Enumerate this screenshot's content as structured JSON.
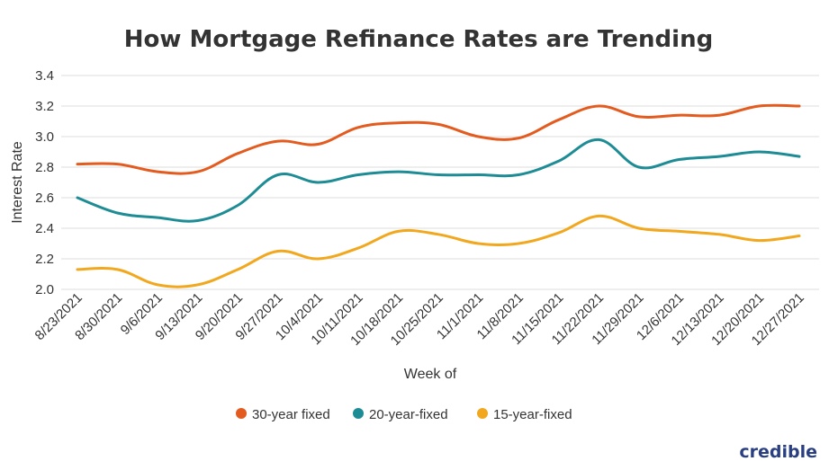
{
  "chart_data": {
    "type": "line",
    "title": "How Mortgage Refinance Rates are Trending",
    "xlabel": "Week of",
    "ylabel": "Interest Rate",
    "ylim": [
      2.0,
      3.4
    ],
    "yticks": [
      "3.4",
      "3.2",
      "3.0",
      "2.8",
      "2.6",
      "2.4",
      "2.2",
      "2.0"
    ],
    "grid": true,
    "legend_position": "bottom",
    "categories": [
      "8/23/2021",
      "8/30/2021",
      "9/6/2021",
      "9/13/2021",
      "9/20/2021",
      "9/27/2021",
      "10/4/2021",
      "10/11/2021",
      "10/18/2021",
      "10/25/2021",
      "11/1/2021",
      "11/8/2021",
      "11/15/2021",
      "11/22/2021",
      "11/29/2021",
      "12/6/2021",
      "12/13/2021",
      "12/20/2021",
      "12/27/2021"
    ],
    "series": [
      {
        "name": "30-year fixed",
        "color": "#e35b1e",
        "values": [
          2.82,
          2.82,
          2.77,
          2.77,
          2.89,
          2.97,
          2.95,
          3.06,
          3.09,
          3.08,
          3.0,
          2.99,
          3.11,
          3.2,
          3.13,
          3.14,
          3.14,
          3.2,
          3.2
        ]
      },
      {
        "name": "20-year-fixed",
        "color": "#1e8c95",
        "values": [
          2.6,
          2.5,
          2.47,
          2.45,
          2.55,
          2.75,
          2.7,
          2.75,
          2.77,
          2.75,
          2.75,
          2.75,
          2.84,
          2.98,
          2.8,
          2.85,
          2.87,
          2.9,
          2.87
        ]
      },
      {
        "name": "15-year-fixed",
        "color": "#f2a81e",
        "values": [
          2.13,
          2.13,
          2.03,
          2.03,
          2.13,
          2.25,
          2.2,
          2.27,
          2.38,
          2.36,
          2.3,
          2.3,
          2.37,
          2.48,
          2.4,
          2.38,
          2.36,
          2.32,
          2.35
        ]
      }
    ]
  },
  "brand": {
    "name": "credible",
    "color": "#2a3f82"
  }
}
